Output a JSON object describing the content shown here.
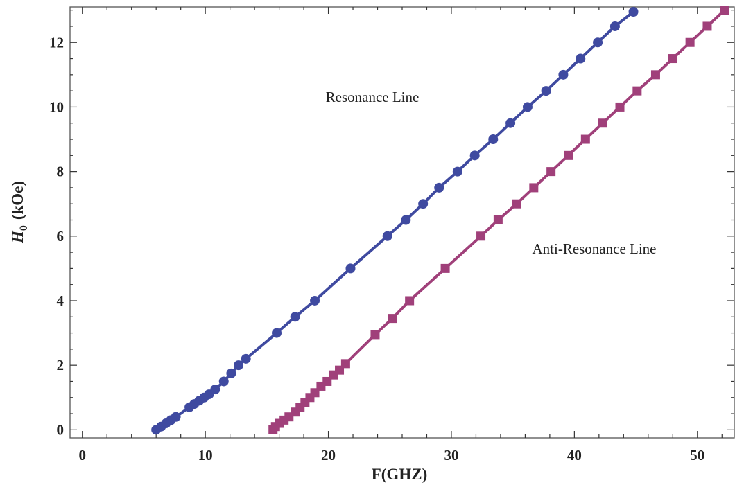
{
  "chart_data": {
    "type": "scatter",
    "title": "",
    "xlabel": "F(GHZ)",
    "ylabel_var": "H",
    "ylabel_sub": "0",
    "ylabel_unit": "(kOe)",
    "xlim": [
      -1,
      53
    ],
    "ylim": [
      -0.25,
      13.1
    ],
    "xticks": [
      0,
      10,
      20,
      30,
      40,
      50
    ],
    "yticks": [
      0,
      2,
      4,
      6,
      8,
      10,
      12
    ],
    "grid": false,
    "annotations": [
      "Resonance Line",
      "Anti-Resonance Line"
    ],
    "series": [
      {
        "label": "Resonance Line",
        "color": "#3f4aa0",
        "marker": "circle",
        "line": true,
        "points": [
          [
            6.0,
            0.0
          ],
          [
            6.4,
            0.1
          ],
          [
            6.8,
            0.2
          ],
          [
            7.2,
            0.3
          ],
          [
            7.6,
            0.4
          ],
          [
            8.7,
            0.7
          ],
          [
            9.1,
            0.8
          ],
          [
            9.5,
            0.9
          ],
          [
            9.9,
            1.0
          ],
          [
            10.3,
            1.1
          ],
          [
            10.8,
            1.25
          ],
          [
            11.5,
            1.5
          ],
          [
            12.1,
            1.75
          ],
          [
            12.7,
            2.0
          ],
          [
            13.3,
            2.2
          ],
          [
            15.8,
            3.0
          ],
          [
            17.3,
            3.5
          ],
          [
            18.9,
            4.0
          ],
          [
            21.8,
            5.0
          ],
          [
            24.8,
            6.0
          ],
          [
            26.3,
            6.5
          ],
          [
            27.7,
            7.0
          ],
          [
            29.0,
            7.5
          ],
          [
            30.5,
            8.0
          ],
          [
            31.9,
            8.5
          ],
          [
            33.4,
            9.0
          ],
          [
            34.8,
            9.5
          ],
          [
            36.2,
            10.0
          ],
          [
            37.7,
            10.5
          ],
          [
            39.1,
            11.0
          ],
          [
            40.5,
            11.5
          ],
          [
            41.9,
            12.0
          ],
          [
            43.3,
            12.5
          ],
          [
            44.8,
            12.95
          ]
        ]
      },
      {
        "label": "Anti-Resonance Line",
        "color": "#a0407a",
        "marker": "square",
        "line": true,
        "points": [
          [
            15.5,
            0.0
          ],
          [
            15.7,
            0.1
          ],
          [
            16.0,
            0.2
          ],
          [
            16.4,
            0.3
          ],
          [
            16.8,
            0.4
          ],
          [
            17.3,
            0.55
          ],
          [
            17.7,
            0.7
          ],
          [
            18.1,
            0.85
          ],
          [
            18.5,
            1.0
          ],
          [
            18.9,
            1.15
          ],
          [
            19.4,
            1.35
          ],
          [
            19.9,
            1.5
          ],
          [
            20.4,
            1.7
          ],
          [
            20.9,
            1.85
          ],
          [
            21.4,
            2.05
          ],
          [
            23.8,
            2.95
          ],
          [
            25.2,
            3.45
          ],
          [
            26.6,
            4.0
          ],
          [
            29.5,
            5.0
          ],
          [
            32.4,
            6.0
          ],
          [
            33.8,
            6.5
          ],
          [
            35.3,
            7.0
          ],
          [
            36.7,
            7.5
          ],
          [
            38.1,
            8.0
          ],
          [
            39.5,
            8.5
          ],
          [
            40.9,
            9.0
          ],
          [
            42.3,
            9.5
          ],
          [
            43.7,
            10.0
          ],
          [
            45.1,
            10.5
          ],
          [
            46.6,
            11.0
          ],
          [
            48.0,
            11.5
          ],
          [
            49.4,
            12.0
          ],
          [
            50.8,
            12.5
          ],
          [
            52.2,
            13.0
          ]
        ]
      }
    ]
  }
}
